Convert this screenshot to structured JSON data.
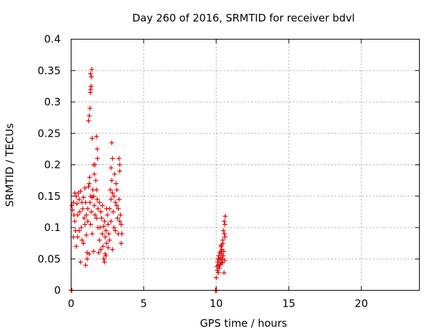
{
  "chart_data": {
    "type": "scatter",
    "title": "Day 260 of 2016, SRMTID for receiver bdvl",
    "xlabel": "GPS time / hours",
    "ylabel": "SRMTID / TECUs",
    "xlim": [
      0,
      24
    ],
    "ylim": [
      0,
      0.4
    ],
    "grid": true,
    "x_ticks": [
      0,
      5,
      10,
      15,
      20
    ],
    "x_tick_labels": [
      "0",
      "5",
      "10",
      "15",
      "20"
    ],
    "y_ticks": [
      0,
      0.05,
      0.1,
      0.15,
      0.2,
      0.25,
      0.3,
      0.35,
      0.4
    ],
    "y_tick_labels": [
      "0",
      "0.05",
      "0.1",
      "0.15",
      "0.2",
      "0.25",
      "0.3",
      "0.35",
      "0.4"
    ],
    "marker": "plus",
    "series_color": "#e00000",
    "series": [
      {
        "name": "SRMTID",
        "points": [
          [
            0.0,
            0.0
          ],
          [
            0.02,
            0.0
          ],
          [
            0.05,
            0.0
          ],
          [
            0.05,
            0.135
          ],
          [
            0.1,
            0.128
          ],
          [
            0.15,
            0.14
          ],
          [
            0.2,
            0.12
          ],
          [
            0.25,
            0.11
          ],
          [
            0.3,
            0.095
          ],
          [
            0.35,
            0.15
          ],
          [
            0.4,
            0.138
          ],
          [
            0.45,
            0.085
          ],
          [
            0.5,
            0.155
          ],
          [
            0.55,
            0.145
          ],
          [
            0.6,
            0.125
          ],
          [
            0.65,
            0.158
          ],
          [
            0.7,
            0.1
          ],
          [
            0.75,
            0.08
          ],
          [
            0.8,
            0.13
          ],
          [
            0.85,
            0.148
          ],
          [
            0.9,
            0.115
          ],
          [
            0.95,
            0.163
          ],
          [
            1.0,
            0.14
          ],
          [
            1.05,
            0.12
          ],
          [
            1.1,
            0.05
          ],
          [
            1.15,
            0.13
          ],
          [
            1.2,
            0.165
          ],
          [
            1.25,
            0.17
          ],
          [
            1.28,
            0.18
          ],
          [
            1.3,
            0.14
          ],
          [
            1.35,
            0.105
          ],
          [
            1.4,
            0.125
          ],
          [
            1.45,
            0.09
          ],
          [
            1.5,
            0.16
          ],
          [
            1.55,
            0.15
          ],
          [
            1.6,
            0.135
          ],
          [
            1.65,
            0.2
          ],
          [
            1.7,
            0.175
          ],
          [
            1.75,
            0.115
          ],
          [
            1.8,
            0.145
          ],
          [
            1.85,
            0.13
          ],
          [
            1.9,
            0.06
          ],
          [
            1.95,
            0.08
          ],
          [
            2.0,
            0.1
          ],
          [
            2.05,
            0.125
          ],
          [
            2.1,
            0.115
          ],
          [
            2.15,
            0.09
          ],
          [
            2.2,
            0.07
          ],
          [
            2.25,
            0.05
          ],
          [
            2.3,
            0.11
          ],
          [
            2.35,
            0.085
          ],
          [
            2.4,
            0.095
          ],
          [
            2.45,
            0.075
          ],
          [
            2.5,
            0.12
          ],
          [
            2.55,
            0.105
          ],
          [
            2.6,
            0.09
          ],
          [
            2.65,
            0.13
          ],
          [
            2.7,
            0.16
          ],
          [
            2.75,
            0.145
          ],
          [
            2.8,
            0.175
          ],
          [
            2.85,
            0.155
          ],
          [
            2.9,
            0.125
          ],
          [
            2.95,
            0.1
          ],
          [
            3.0,
            0.185
          ],
          [
            3.05,
            0.14
          ],
          [
            3.1,
            0.17
          ],
          [
            3.15,
            0.135
          ],
          [
            3.2,
            0.115
          ],
          [
            3.25,
            0.13
          ],
          [
            3.3,
            0.145
          ],
          [
            3.35,
            0.2
          ],
          [
            3.4,
            0.12
          ],
          [
            3.45,
            0.105
          ],
          [
            3.5,
            0.09
          ],
          [
            0.15,
            0.085
          ],
          [
            0.25,
            0.155
          ],
          [
            0.35,
            0.07
          ],
          [
            0.45,
            0.12
          ],
          [
            0.55,
            0.095
          ],
          [
            0.65,
            0.045
          ],
          [
            0.75,
            0.14
          ],
          [
            0.85,
            0.075
          ],
          [
            0.95,
            0.105
          ],
          [
            1.05,
            0.088
          ],
          [
            1.15,
            0.11
          ],
          [
            1.25,
            0.058
          ],
          [
            1.35,
            0.15
          ],
          [
            1.45,
            0.148
          ],
          [
            1.55,
            0.062
          ],
          [
            1.65,
            0.12
          ],
          [
            1.75,
            0.16
          ],
          [
            1.85,
            0.1
          ],
          [
            1.95,
            0.14
          ],
          [
            2.05,
            0.065
          ],
          [
            2.15,
            0.135
          ],
          [
            2.25,
            0.102
          ],
          [
            2.35,
            0.058
          ],
          [
            2.45,
            0.13
          ],
          [
            2.55,
            0.068
          ],
          [
            2.65,
            0.08
          ],
          [
            2.75,
            0.11
          ],
          [
            2.85,
            0.065
          ],
          [
            2.95,
            0.15
          ],
          [
            3.05,
            0.095
          ],
          [
            3.15,
            0.16
          ],
          [
            3.25,
            0.09
          ],
          [
            3.35,
            0.11
          ],
          [
            3.45,
            0.075
          ],
          [
            1.2,
            0.27
          ],
          [
            1.25,
            0.278
          ],
          [
            1.3,
            0.29
          ],
          [
            1.32,
            0.315
          ],
          [
            1.35,
            0.32
          ],
          [
            1.38,
            0.325
          ],
          [
            1.4,
            0.34
          ],
          [
            1.42,
            0.352
          ],
          [
            1.33,
            0.345
          ],
          [
            1.45,
            0.242
          ],
          [
            1.75,
            0.245
          ],
          [
            1.8,
            0.225
          ],
          [
            1.82,
            0.21
          ],
          [
            2.8,
            0.235
          ],
          [
            2.85,
            0.21
          ],
          [
            2.75,
            0.195
          ],
          [
            3.3,
            0.21
          ],
          [
            3.35,
            0.19
          ],
          [
            1.55,
            0.2
          ],
          [
            1.6,
            0.185
          ],
          [
            2.3,
            0.045
          ],
          [
            2.4,
            0.055
          ],
          [
            1.0,
            0.04
          ],
          [
            1.1,
            0.06
          ],
          [
            9.95,
            0.0
          ],
          [
            10.0,
            0.0
          ],
          [
            10.02,
            0.0
          ],
          [
            10.0,
            0.02
          ],
          [
            10.05,
            0.038
          ],
          [
            10.1,
            0.045
          ],
          [
            10.12,
            0.05
          ],
          [
            10.15,
            0.04
          ],
          [
            10.18,
            0.055
          ],
          [
            10.2,
            0.035
          ],
          [
            10.22,
            0.048
          ],
          [
            10.25,
            0.06
          ],
          [
            10.28,
            0.042
          ],
          [
            10.3,
            0.052
          ],
          [
            10.32,
            0.07
          ],
          [
            10.35,
            0.045
          ],
          [
            10.38,
            0.058
          ],
          [
            10.4,
            0.065
          ],
          [
            10.42,
            0.05
          ],
          [
            10.45,
            0.08
          ],
          [
            10.48,
            0.055
          ],
          [
            10.5,
            0.095
          ],
          [
            10.52,
            0.062
          ],
          [
            10.55,
            0.11
          ],
          [
            10.58,
            0.048
          ],
          [
            10.6,
            0.085
          ],
          [
            10.62,
            0.118
          ],
          [
            10.08,
            0.032
          ],
          [
            10.14,
            0.028
          ],
          [
            10.26,
            0.04
          ],
          [
            10.34,
            0.062
          ],
          [
            10.44,
            0.044
          ],
          [
            10.54,
            0.028
          ],
          [
            10.56,
            0.09
          ],
          [
            10.6,
            0.105
          ],
          [
            10.46,
            0.075
          ],
          [
            10.36,
            0.072
          ]
        ]
      }
    ]
  }
}
